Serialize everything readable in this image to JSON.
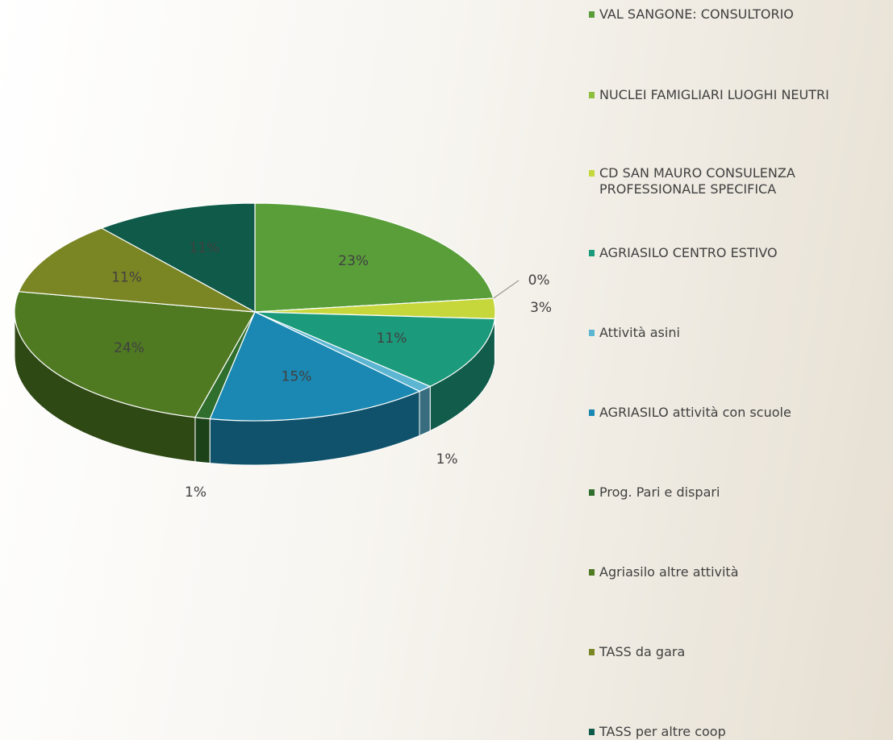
{
  "chart_data": {
    "type": "pie",
    "categories": [
      "VAL SANGONE: CONSULTORIO",
      "NUCLEI FAMIGLIARI LUOGHI NEUTRI",
      "CD SAN MAURO CONSULENZA PROFESSIONALE SPECIFICA",
      "AGRIASILO CENTRO ESTIVO",
      "Attività asini",
      "AGRIASILO attività con scuole",
      "Prog. Pari e dispari",
      "Agriasilo altre attività",
      "TASS da gara",
      "TASS per altre coop"
    ],
    "values": [
      23,
      0,
      3,
      11,
      1,
      15,
      1,
      24,
      11,
      11
    ],
    "value_labels": [
      "23%",
      "0%",
      "3%",
      "11%",
      "1%",
      "15%",
      "1%",
      "24%",
      "11%",
      "11%"
    ],
    "colors": [
      "#5a9e3a",
      "#8dbf3c",
      "#c6d73c",
      "#1c9a7c",
      "#5cb6d2",
      "#1a88b2",
      "#2f6e2c",
      "#4f7a22",
      "#7a8624",
      "#0f5a48"
    ],
    "legend": "right"
  }
}
